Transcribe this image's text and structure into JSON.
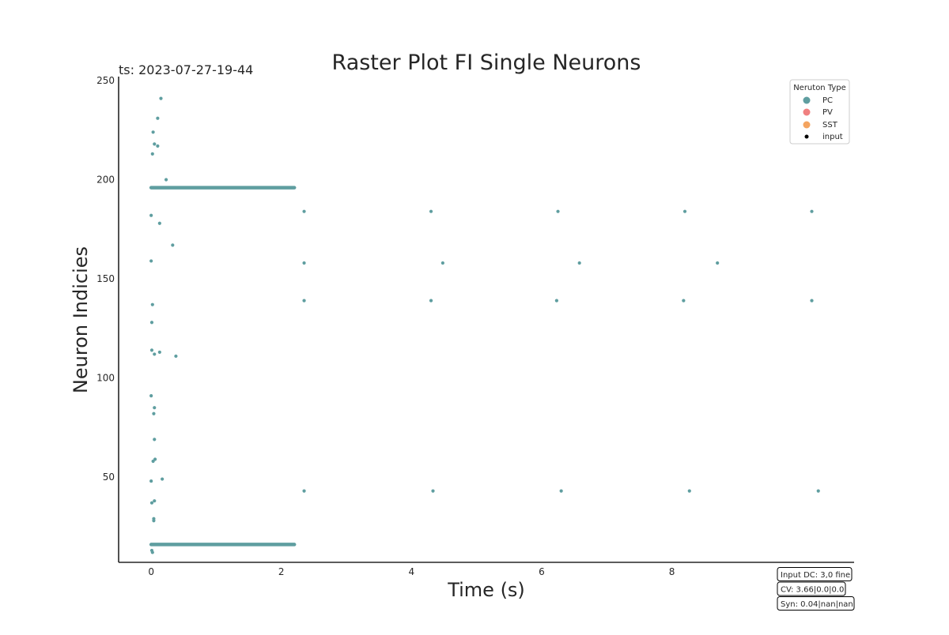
{
  "chart_data": {
    "type": "scatter",
    "title": "Raster Plot FI Single Neurons",
    "timestamp_label": "ts: 2023-07-27-19-44",
    "xlabel": "Time (s)",
    "ylabel": "Neuron Indicies",
    "xlim": [
      -0.5,
      10.8
    ],
    "ylim": [
      7,
      252
    ],
    "x_ticks": [
      0,
      2,
      4,
      6,
      8
    ],
    "y_ticks": [
      50,
      100,
      150,
      200,
      250
    ],
    "grid": false,
    "legend": {
      "title": "Neruton Type",
      "placement": "top-right",
      "entries": [
        {
          "name": "PC",
          "color": "#5f9ea0",
          "marker": "large-dot"
        },
        {
          "name": "PV",
          "color": "#f08080",
          "marker": "large-dot"
        },
        {
          "name": "SST",
          "color": "#f4a460",
          "marker": "large-dot"
        },
        {
          "name": "input",
          "color": "#000000",
          "marker": "small-dot"
        }
      ]
    },
    "series": [
      {
        "name": "PC",
        "color": "#5f9ea0",
        "points": [
          [
            0.15,
            241
          ],
          [
            0.1,
            231
          ],
          [
            0.03,
            224
          ],
          [
            0.05,
            218
          ],
          [
            0.1,
            217
          ],
          [
            0.02,
            213
          ],
          [
            0.23,
            200
          ],
          [
            0.0,
            182
          ],
          [
            0.13,
            178
          ],
          [
            0.33,
            167
          ],
          [
            0.0,
            159
          ],
          [
            0.02,
            137
          ],
          [
            0.01,
            128
          ],
          [
            0.01,
            114
          ],
          [
            0.05,
            112
          ],
          [
            0.13,
            113
          ],
          [
            0.38,
            111
          ],
          [
            0.0,
            91
          ],
          [
            0.05,
            85
          ],
          [
            0.04,
            82
          ],
          [
            0.05,
            69
          ],
          [
            0.06,
            59
          ],
          [
            0.03,
            58
          ],
          [
            0.0,
            48
          ],
          [
            0.17,
            49
          ],
          [
            0.05,
            38
          ],
          [
            0.01,
            37
          ],
          [
            0.04,
            29
          ],
          [
            0.04,
            28
          ],
          [
            0.01,
            13
          ],
          [
            0.02,
            12
          ],
          [
            2.35,
            184
          ],
          [
            4.3,
            184
          ],
          [
            6.25,
            184
          ],
          [
            8.2,
            184
          ],
          [
            10.15,
            184
          ],
          [
            2.35,
            158
          ],
          [
            4.48,
            158
          ],
          [
            6.58,
            158
          ],
          [
            8.7,
            158
          ],
          [
            2.35,
            139
          ],
          [
            4.3,
            139
          ],
          [
            6.23,
            139
          ],
          [
            8.18,
            139
          ],
          [
            10.15,
            139
          ],
          [
            2.35,
            43
          ],
          [
            4.33,
            43
          ],
          [
            6.3,
            43
          ],
          [
            8.27,
            43
          ],
          [
            10.25,
            43
          ]
        ],
        "dense_rows": [
          {
            "neuron": 196,
            "t_start": 0.0,
            "t_end": 2.2
          },
          {
            "neuron": 16,
            "t_start": 0.0,
            "t_end": 2.2
          }
        ]
      },
      {
        "name": "PV",
        "color": "#f08080",
        "points": []
      },
      {
        "name": "SST",
        "color": "#f4a460",
        "points": []
      },
      {
        "name": "input",
        "color": "#000000",
        "points": []
      }
    ],
    "annotations": [
      "Input DC: 3,0 fine",
      "CV: 3.66|0.0|0.0",
      "Syn: 0.04|nan|nan"
    ]
  }
}
